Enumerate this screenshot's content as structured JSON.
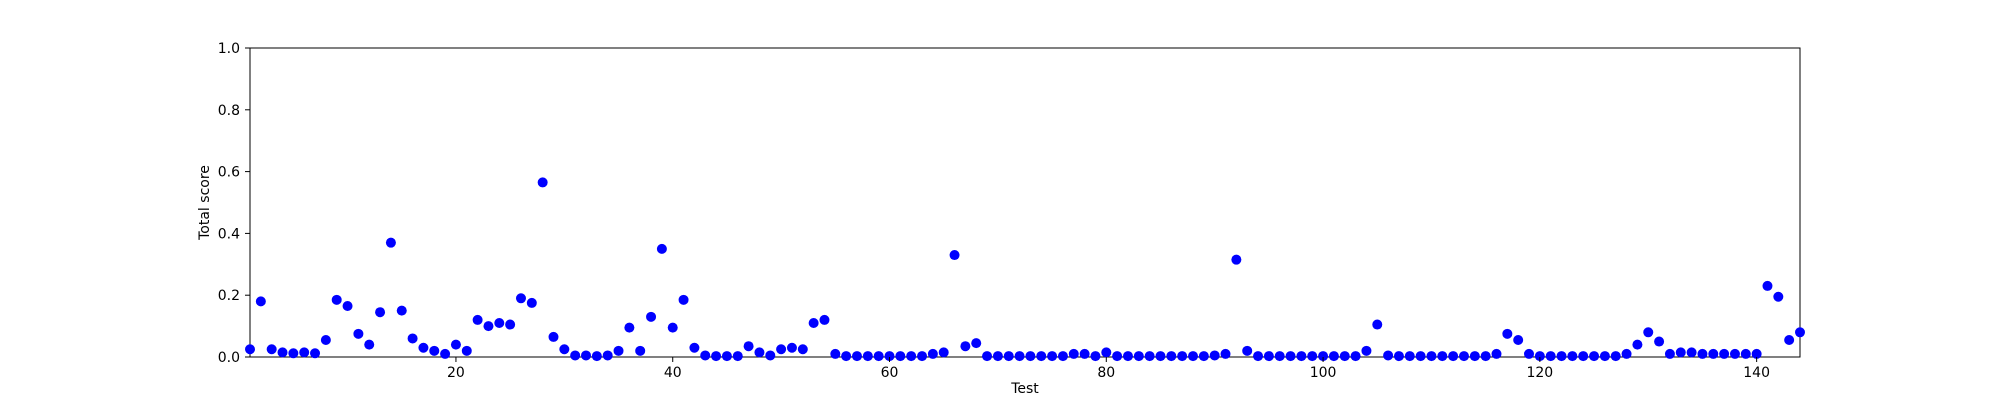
{
  "chart_data": {
    "type": "scatter",
    "xlabel": "Test",
    "ylabel": "Total score",
    "xlim": [
      1,
      144
    ],
    "ylim": [
      0.0,
      1.0
    ],
    "x_ticks": [
      20,
      40,
      60,
      80,
      100,
      120,
      140
    ],
    "x_tick_labels": [
      "20",
      "40",
      "60",
      "80",
      "100",
      "120",
      "140"
    ],
    "y_ticks": [
      0.0,
      0.2,
      0.4,
      0.6,
      0.8,
      1.0
    ],
    "y_tick_labels": [
      "0.0",
      "0.2",
      "0.4",
      "0.6",
      "0.8",
      "1.0"
    ],
    "grid": false,
    "marker_color": "#0000ff",
    "x": [
      1,
      2,
      3,
      4,
      5,
      6,
      7,
      8,
      9,
      10,
      11,
      12,
      13,
      14,
      15,
      16,
      17,
      18,
      19,
      20,
      21,
      22,
      23,
      24,
      25,
      26,
      27,
      28,
      29,
      30,
      31,
      32,
      33,
      34,
      35,
      36,
      37,
      38,
      39,
      40,
      41,
      42,
      43,
      44,
      45,
      46,
      47,
      48,
      49,
      50,
      51,
      52,
      53,
      54,
      55,
      56,
      57,
      58,
      59,
      60,
      61,
      62,
      63,
      64,
      65,
      66,
      67,
      68,
      69,
      70,
      71,
      72,
      73,
      74,
      75,
      76,
      77,
      78,
      79,
      80,
      81,
      82,
      83,
      84,
      85,
      86,
      87,
      88,
      89,
      90,
      91,
      92,
      93,
      94,
      95,
      96,
      97,
      98,
      99,
      100,
      101,
      102,
      103,
      104,
      105,
      106,
      107,
      108,
      109,
      110,
      111,
      112,
      113,
      114,
      115,
      116,
      117,
      118,
      119,
      120,
      121,
      122,
      123,
      124,
      125,
      126,
      127,
      128,
      129,
      130,
      131,
      132,
      133,
      134,
      135,
      136,
      137,
      138,
      139,
      140,
      141,
      142,
      143,
      144
    ],
    "y": [
      0.025,
      0.18,
      0.025,
      0.015,
      0.012,
      0.015,
      0.012,
      0.055,
      0.185,
      0.165,
      0.075,
      0.04,
      0.145,
      0.37,
      0.15,
      0.06,
      0.03,
      0.02,
      0.01,
      0.04,
      0.02,
      0.12,
      0.1,
      0.11,
      0.105,
      0.19,
      0.175,
      0.565,
      0.065,
      0.025,
      0.005,
      0.005,
      0.003,
      0.005,
      0.02,
      0.095,
      0.02,
      0.13,
      0.35,
      0.095,
      0.185,
      0.03,
      0.005,
      0.003,
      0.003,
      0.003,
      0.035,
      0.015,
      0.005,
      0.025,
      0.03,
      0.025,
      0.11,
      0.12,
      0.01,
      0.003,
      0.003,
      0.003,
      0.003,
      0.003,
      0.003,
      0.003,
      0.003,
      0.01,
      0.015,
      0.33,
      0.035,
      0.045,
      0.003,
      0.003,
      0.003,
      0.003,
      0.003,
      0.003,
      0.003,
      0.003,
      0.01,
      0.01,
      0.003,
      0.015,
      0.003,
      0.003,
      0.003,
      0.003,
      0.003,
      0.003,
      0.003,
      0.003,
      0.003,
      0.005,
      0.01,
      0.315,
      0.02,
      0.003,
      0.003,
      0.003,
      0.003,
      0.003,
      0.003,
      0.003,
      0.003,
      0.003,
      0.003,
      0.02,
      0.105,
      0.005,
      0.003,
      0.003,
      0.003,
      0.003,
      0.003,
      0.003,
      0.003,
      0.003,
      0.003,
      0.01,
      0.075,
      0.055,
      0.01,
      0.003,
      0.003,
      0.003,
      0.003,
      0.003,
      0.003,
      0.003,
      0.003,
      0.01,
      0.04,
      0.08,
      0.05,
      0.01,
      0.015,
      0.015,
      0.01,
      0.01,
      0.01,
      0.01,
      0.01,
      0.01,
      0.23,
      0.195,
      0.055,
      0.08
    ]
  }
}
